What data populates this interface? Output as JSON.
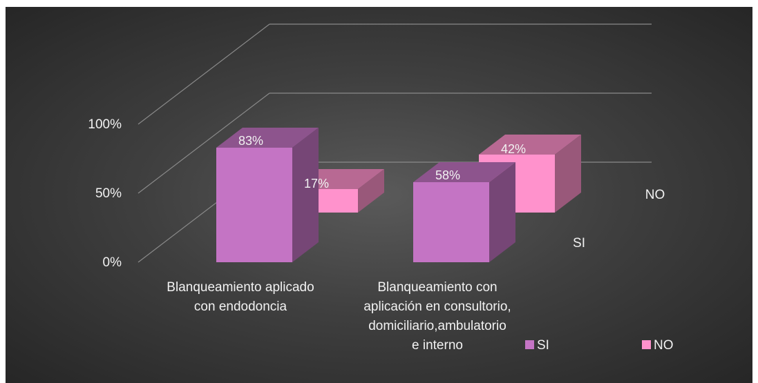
{
  "chart_data": {
    "type": "bar",
    "subtype": "3d-column",
    "title": "",
    "categories": [
      [
        "Blanqueamiento aplicado",
        "con endodoncia"
      ],
      [
        "Blanqueamiento con",
        "aplicación en consultorio,",
        "domiciliario,ambulatorio",
        "e interno"
      ]
    ],
    "series": [
      {
        "name": "SI",
        "values": [
          0.83,
          0.58
        ],
        "labels": [
          "83%",
          "58%"
        ],
        "color": "#c474c4"
      },
      {
        "name": "NO",
        "values": [
          0.17,
          0.42
        ],
        "labels": [
          "17%",
          "42%"
        ],
        "color": "#ff92cc"
      }
    ],
    "depth_axis_labels": [
      "SI",
      "NO"
    ],
    "y_ticks": [
      "0%",
      "50%",
      "100%"
    ],
    "ylim": [
      0,
      1
    ],
    "grid": true,
    "legend_position": "bottom-right",
    "background_color": "#3a3a3a"
  }
}
